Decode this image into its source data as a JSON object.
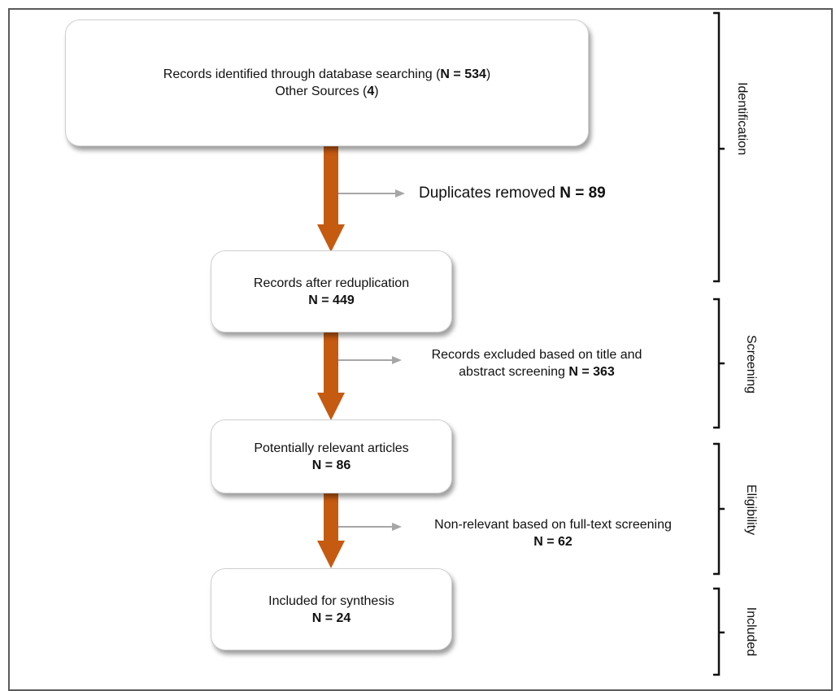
{
  "flow": {
    "box1": {
      "line1_text": "Records identified through database searching (",
      "line1_bold": "N = 534",
      "line1_close": ")",
      "line2_text": "Other Sources (",
      "line2_bold": "4",
      "line2_close": ")"
    },
    "exclusion1": {
      "text": "Duplicates removed ",
      "bold": "N = 89"
    },
    "box2": {
      "text": "Records after reduplication",
      "bold": "N = 449"
    },
    "exclusion2": {
      "line1": "Records excluded based on title and",
      "line2": "abstract screening ",
      "bold": "N = 363"
    },
    "box3": {
      "text": "Potentially relevant articles",
      "bold": "N = 86"
    },
    "exclusion3": {
      "line1": "Non-relevant based on full-text screening",
      "bold": "N = 62"
    },
    "box4": {
      "text": "Included for synthesis",
      "bold": "N = 24"
    }
  },
  "stages": {
    "identification": "Identification",
    "screening": "Screening",
    "eligibility": "Eligibility",
    "included": "Included"
  },
  "colors": {
    "main_arrow": "#c55a11",
    "side_arrow": "#a6a6a6",
    "frame": "#5a5a5a",
    "bracket": "#111111"
  }
}
